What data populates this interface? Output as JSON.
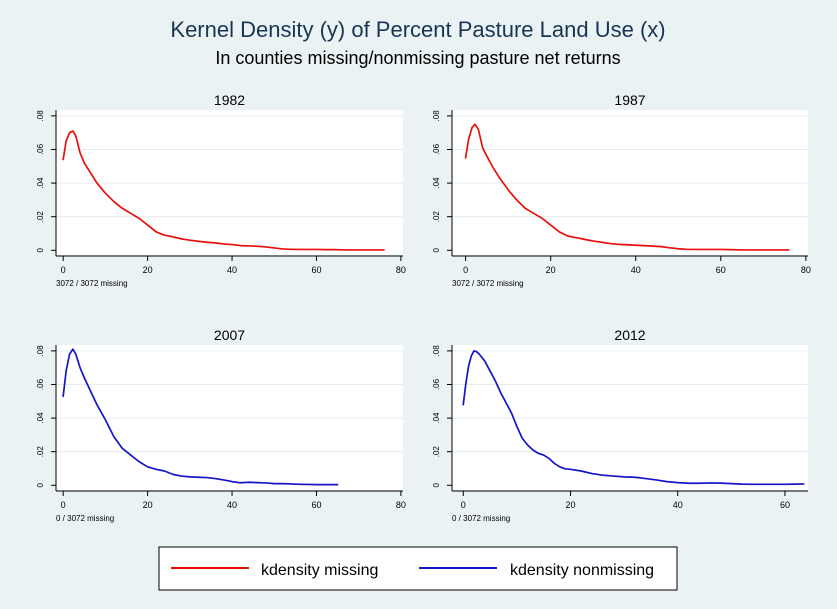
{
  "title": "Kernel Density (y) of Percent Pasture Land Use (x)",
  "subtitle": "In counties missing/nonmissing pasture net returns",
  "colors": {
    "background": "#eaf2f3",
    "plot_background": "#ffffff",
    "missing": "#e8100c",
    "nonmissing": "#1414c8",
    "grid": "#e3ecee",
    "text": "#000000",
    "title": "#1a3554"
  },
  "legend": {
    "placement": "bottom-center",
    "items": [
      {
        "label": "kdensity missing",
        "color": "#e8100c"
      },
      {
        "label": "kdensity nonmissing",
        "color": "#1414c8"
      }
    ]
  },
  "chart_data": [
    {
      "type": "line",
      "title": "1982",
      "note": "3072 / 3072 missing",
      "xlim": [
        0,
        80
      ],
      "ylim": [
        0,
        0.08
      ],
      "xticks": [
        "0",
        "20",
        "40",
        "60",
        "80"
      ],
      "yticks": [
        "0",
        ".02",
        ".04",
        ".06",
        ".08"
      ],
      "grid": true,
      "series": [
        {
          "color": "#e8100c",
          "x": [
            0,
            0.7,
            1.5,
            2.3,
            3,
            4,
            5,
            6.5,
            8,
            10,
            12,
            14,
            16,
            18,
            20,
            22,
            24,
            26,
            28,
            30,
            32,
            34,
            36,
            38,
            40,
            42,
            44,
            46,
            48,
            50,
            52,
            54,
            56,
            58,
            60,
            62,
            64,
            66,
            68,
            70,
            72,
            74,
            76
          ],
          "y": [
            0.054,
            0.065,
            0.07,
            0.071,
            0.068,
            0.058,
            0.052,
            0.046,
            0.04,
            0.034,
            0.029,
            0.025,
            0.022,
            0.019,
            0.015,
            0.011,
            0.009,
            0.008,
            0.0068,
            0.006,
            0.0054,
            0.0048,
            0.0044,
            0.0038,
            0.0034,
            0.0028,
            0.0026,
            0.0024,
            0.002,
            0.0014,
            0.0008,
            0.0006,
            0.0005,
            0.0005,
            0.0005,
            0.0004,
            0.0004,
            0.0003,
            0.0002,
            0.0002,
            0.0002,
            0.0002,
            0.0002
          ]
        }
      ]
    },
    {
      "type": "line",
      "title": "1987",
      "note": "3072 / 3072 missing",
      "xlim": [
        0,
        80
      ],
      "ylim": [
        0,
        0.08
      ],
      "xticks": [
        "0",
        "20",
        "40",
        "60",
        "80"
      ],
      "yticks": [
        "0",
        ".02",
        ".04",
        ".06",
        ".08"
      ],
      "grid": true,
      "series": [
        {
          "color": "#e8100c",
          "x": [
            0,
            0.7,
            1.5,
            2.2,
            3,
            4,
            5,
            6.5,
            8,
            10,
            12,
            14,
            16,
            18,
            20,
            22,
            24,
            26,
            28,
            30,
            32,
            34,
            36,
            38,
            40,
            42,
            44,
            46,
            48,
            50,
            52,
            54,
            56,
            58,
            60,
            62,
            64,
            66,
            68,
            70,
            72,
            74,
            76
          ],
          "y": [
            0.055,
            0.066,
            0.073,
            0.075,
            0.072,
            0.061,
            0.056,
            0.049,
            0.043,
            0.036,
            0.03,
            0.025,
            0.022,
            0.019,
            0.015,
            0.011,
            0.0085,
            0.0075,
            0.0065,
            0.0055,
            0.0048,
            0.004,
            0.0035,
            0.0033,
            0.003,
            0.0028,
            0.0025,
            0.0022,
            0.0015,
            0.0009,
            0.0006,
            0.0005,
            0.0005,
            0.0005,
            0.0005,
            0.0004,
            0.0003,
            0.0002,
            0.0002,
            0.0002,
            0.0002,
            0.0002,
            0.0002
          ]
        }
      ]
    },
    {
      "type": "line",
      "title": "2007",
      "note": "0 / 3072 missing",
      "xlim": [
        0,
        80
      ],
      "ylim": [
        0,
        0.08
      ],
      "xticks": [
        "0",
        "20",
        "40",
        "60",
        "80"
      ],
      "yticks": [
        "0",
        ".02",
        ".04",
        ".06",
        ".08"
      ],
      "grid": true,
      "series": [
        {
          "color": "#1414c8",
          "x": [
            0,
            0.7,
            1.5,
            2.3,
            3,
            4,
            5,
            6.5,
            8,
            10,
            12,
            14,
            16,
            18,
            20,
            22,
            24,
            26,
            28,
            30,
            32,
            34,
            36,
            38,
            40,
            42,
            44,
            46,
            48,
            50,
            52,
            54,
            56,
            58,
            60,
            62,
            64,
            65
          ],
          "y": [
            0.053,
            0.068,
            0.078,
            0.081,
            0.078,
            0.07,
            0.064,
            0.056,
            0.048,
            0.039,
            0.029,
            0.022,
            0.018,
            0.014,
            0.011,
            0.0095,
            0.0085,
            0.0065,
            0.0055,
            0.005,
            0.0048,
            0.0046,
            0.004,
            0.0032,
            0.0022,
            0.0015,
            0.0018,
            0.0016,
            0.0014,
            0.001,
            0.001,
            0.0008,
            0.0006,
            0.0005,
            0.0004,
            0.0004,
            0.0004,
            0.0004
          ]
        }
      ]
    },
    {
      "type": "line",
      "title": "2012",
      "note": "0 / 3072 missing",
      "xlim": [
        0,
        64
      ],
      "ylim": [
        0,
        0.08
      ],
      "xticks": [
        "0",
        "20",
        "40",
        "60"
      ],
      "yticks": [
        "0",
        ".02",
        ".04",
        ".06",
        ".08"
      ],
      "grid": true,
      "series": [
        {
          "color": "#1414c8",
          "x": [
            0,
            0.5,
            1,
            1.5,
            2,
            2.5,
            3,
            4,
            5,
            6,
            7,
            8,
            9,
            10,
            11,
            12,
            13,
            14,
            15,
            16,
            17,
            18,
            19,
            20,
            22,
            24,
            26,
            28,
            30,
            32,
            34,
            36,
            38,
            40,
            42,
            44,
            46,
            48,
            50,
            52,
            54,
            56,
            58,
            60,
            62,
            63.5
          ],
          "y": [
            0.048,
            0.061,
            0.071,
            0.077,
            0.08,
            0.0795,
            0.078,
            0.074,
            0.068,
            0.062,
            0.055,
            0.049,
            0.043,
            0.035,
            0.028,
            0.024,
            0.021,
            0.019,
            0.018,
            0.016,
            0.013,
            0.011,
            0.0098,
            0.0095,
            0.0085,
            0.007,
            0.006,
            0.0055,
            0.005,
            0.0048,
            0.004,
            0.0032,
            0.0022,
            0.0016,
            0.0012,
            0.0012,
            0.0014,
            0.0013,
            0.001,
            0.0007,
            0.0006,
            0.0006,
            0.0006,
            0.0006,
            0.0007,
            0.0008
          ]
        }
      ]
    }
  ]
}
